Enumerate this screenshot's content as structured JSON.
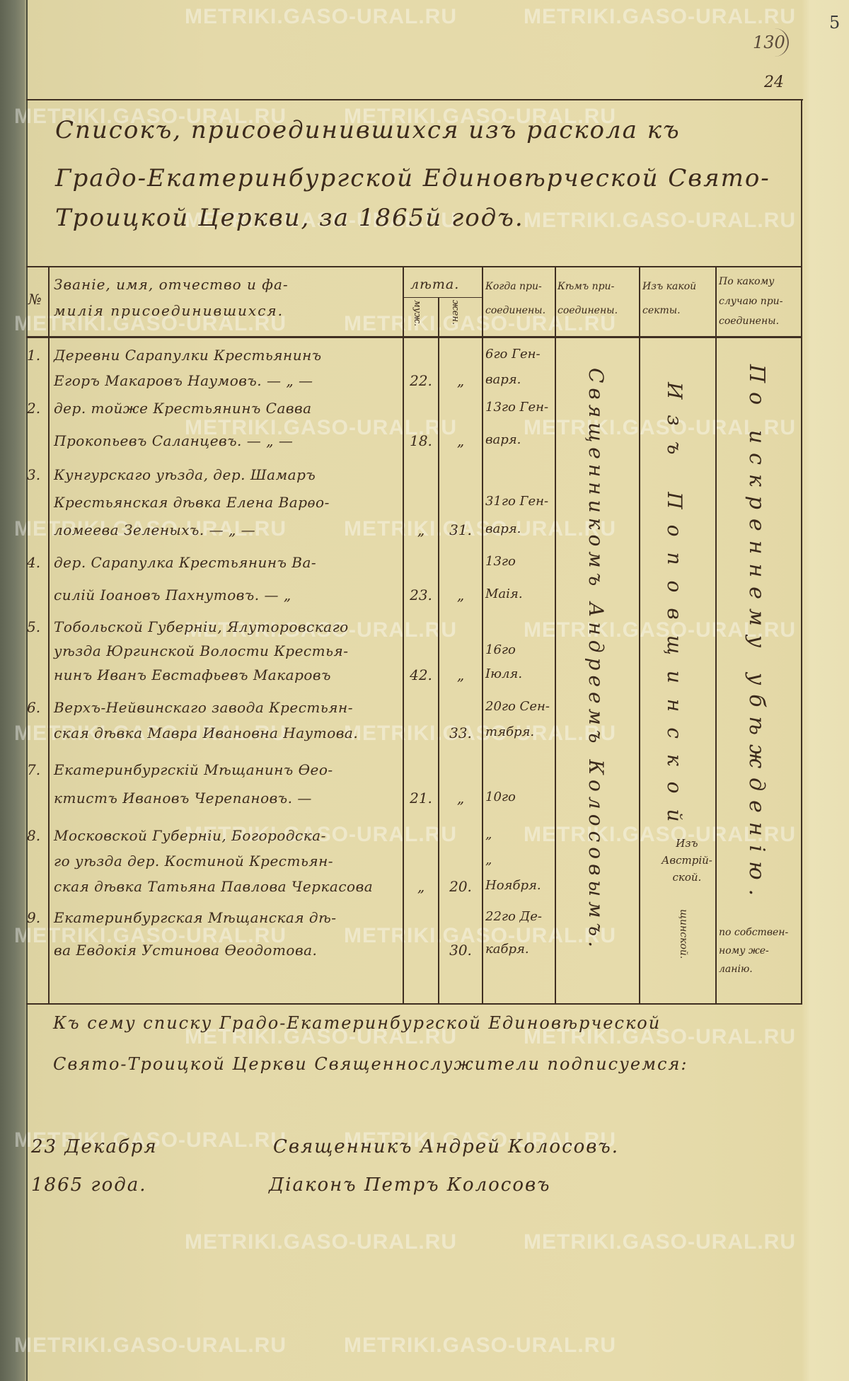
{
  "page_marks": {
    "archive_number": "130",
    "corner_mark": "5",
    "page_number": "24"
  },
  "watermark": "METRIKI.GASO-URAL.RU",
  "title": [
    "Списокъ, присоединившихся изъ раскола къ",
    "Градо-Екатеринбургской Единовѣрческой Свято-",
    "Троицкой Церкви, за 1865й годъ."
  ],
  "header": {
    "number": "№",
    "name": [
      "Званіе, имя, отчество и фа-",
      "милія присоединившихся."
    ],
    "age": "лѣта.",
    "age_male": "муж.",
    "age_female": "жен.",
    "when": [
      "Когда при-",
      "соединены."
    ],
    "by_whom": [
      "Кѣмъ при-",
      "соединены."
    ],
    "sect": [
      "Изъ какой",
      "секты."
    ],
    "reason": [
      "По какому",
      "случаю при-",
      "соединены."
    ]
  },
  "rows": [
    {
      "no": "1.",
      "name": [
        "Деревни Сарапулки Крестьянинъ",
        "Егоръ Макаровъ Наумовъ. — „ —"
      ],
      "male": "22.",
      "female": "„",
      "date": [
        "6го Ген-",
        "варя."
      ]
    },
    {
      "no": "2.",
      "name": [
        "дер. тойже Крестьянинъ Савва",
        "Прокопьевъ Саланцевъ. — „ —"
      ],
      "male": "18.",
      "female": "„",
      "date": [
        "13го Ген-",
        "варя."
      ]
    },
    {
      "no": "3.",
      "name": [
        "Кунгурскаго уѣзда, дер. Шамаръ",
        "Крестьянская дѣвка Елена Варѳо-",
        "ломеева Зеленыхъ. — „ —"
      ],
      "male": "„",
      "female": "31.",
      "date": [
        "",
        "31го Ген-",
        "варя."
      ]
    },
    {
      "no": "4.",
      "name": [
        "дер. Сарапулка Крестьянинъ Ва-",
        "силій Іоановъ Пахнутовъ. — „"
      ],
      "male": "23.",
      "female": "„",
      "date": [
        "13го",
        "Маія."
      ]
    },
    {
      "no": "5.",
      "name": [
        "Тобольской Губерніи, Ялуторовскаго",
        "уѣзда Юргинской Волости Крестья-",
        "нинъ Иванъ Евстафьевъ Макаровъ"
      ],
      "male": "42.",
      "female": "„",
      "date": [
        "",
        "16го",
        "Іюля."
      ]
    },
    {
      "no": "6.",
      "name": [
        "Верхъ-Нейвинскаго завода Крестьян-",
        "ская дѣвка Мавра Ивановна Наутова."
      ],
      "male": "",
      "female": "33.",
      "date": [
        "20го Сен-",
        "тября."
      ]
    },
    {
      "no": "7.",
      "name": [
        "Екатеринбургскій Мѣщанинъ Ѳео-",
        "ктистъ Ивановъ Черепановъ. —"
      ],
      "male": "21.",
      "female": "„",
      "date": [
        "",
        "10го"
      ]
    },
    {
      "no": "8.",
      "name": [
        "Московской Губерніи, Богородска-",
        "го уѣзда дер. Костиной Крестьян-",
        "ская дѣвка Татьяна Павлова Черкасова"
      ],
      "male": "„",
      "female": "20.",
      "date": [
        "„",
        "„",
        "Ноября."
      ]
    },
    {
      "no": "9.",
      "name": [
        "Екатеринбургская Мѣщанская дѣ-",
        "ва Евдокія Устинова Ѳеодотова."
      ],
      "male": "",
      "female": "30.",
      "date": [
        "22го Де-",
        "кабря."
      ]
    }
  ],
  "by_whom_text": "Священникомъ Андреемъ Колосовымъ.",
  "sect_text": "Изъ Поповщинской",
  "sect_note": [
    "Изъ",
    "Австрій-",
    "ской."
  ],
  "sect_text_2": "щинской.",
  "reason_text": "По искреннему убѣжденію.",
  "reason_note": [
    "по собствен-",
    "ному же-",
    "ланію."
  ],
  "footer": {
    "attestation": [
      "Къ сему списку Градо-Екатеринбургской Единовѣрческой",
      "Свято-Троицкой Церкви Священнослужители подписуемся:"
    ],
    "date": [
      "23 Декабря",
      "1865 года."
    ],
    "signatures": [
      "Священникъ Андрей Колосовъ.",
      "Діаконъ Петръ Колосовъ"
    ]
  },
  "colors": {
    "paper": "#e6dbab",
    "ink": "#3b2a1c",
    "margin": "#6d7060"
  }
}
